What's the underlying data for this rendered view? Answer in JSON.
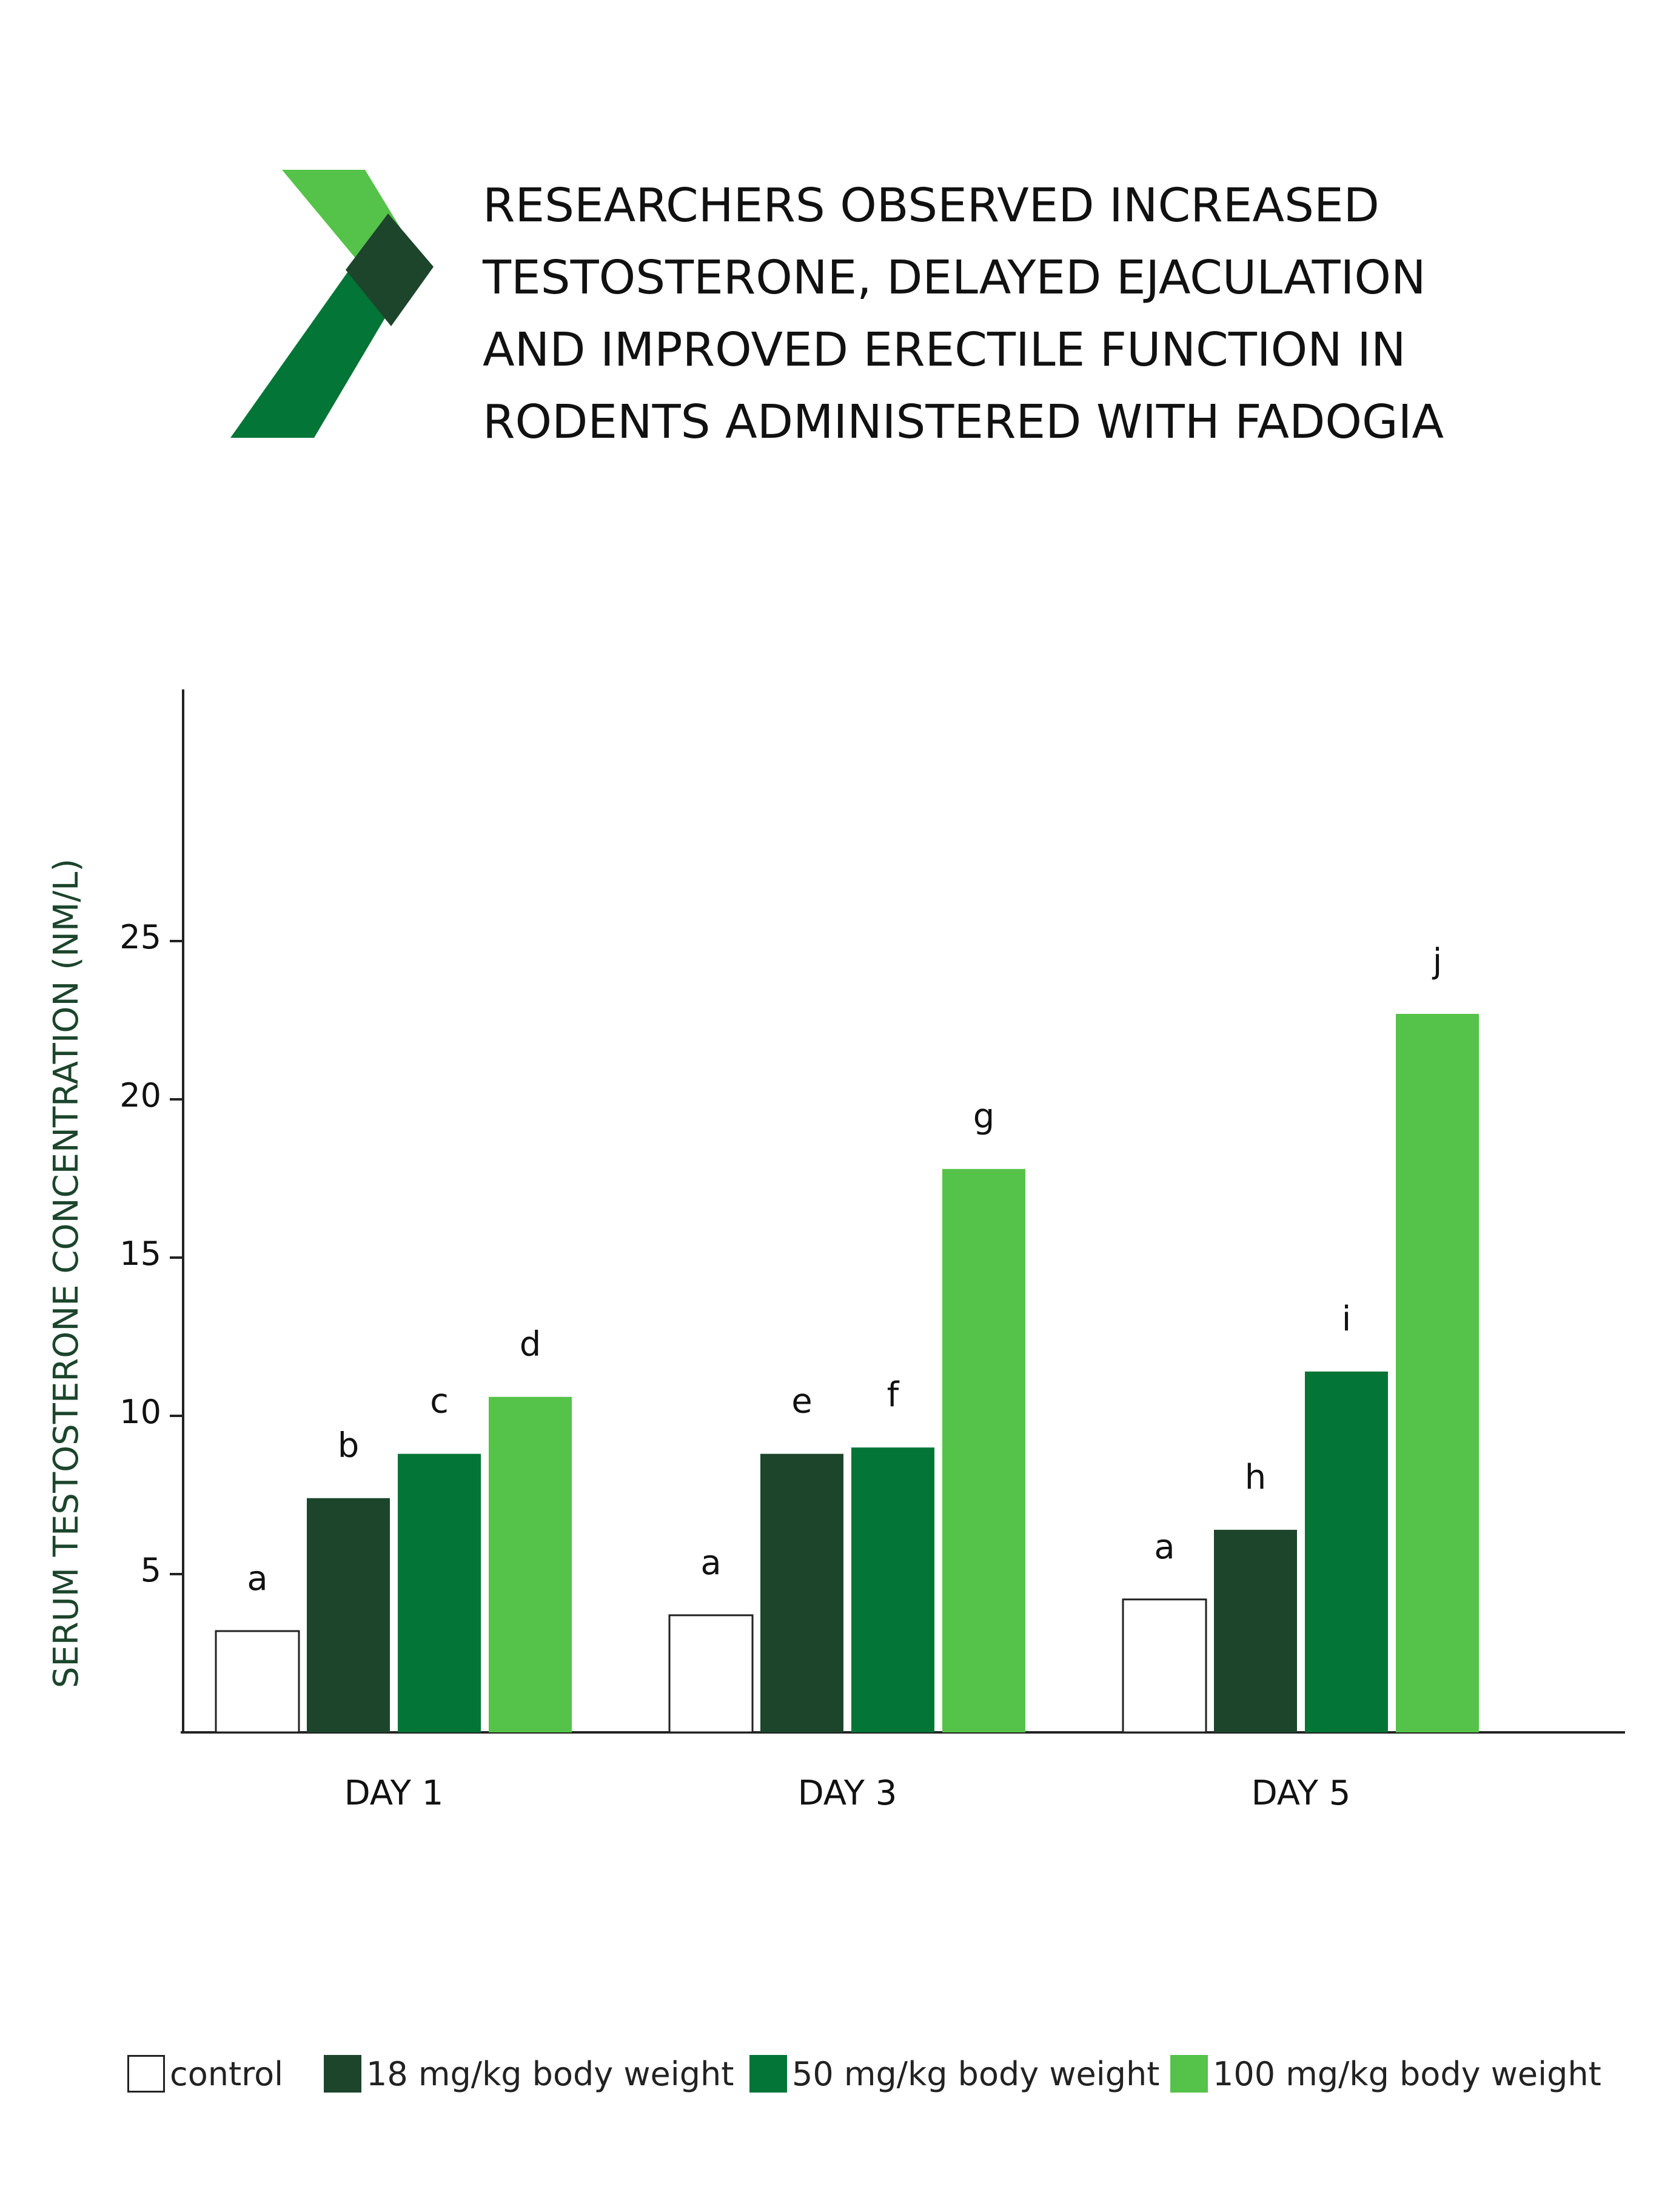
{
  "header": {
    "title_lines": [
      "RESEARCHERS OBSERVED INCREASED",
      "TESTOSTERONE, DELAYED EJACULATION",
      "AND IMPROVED ERECTILE FUNCTION IN",
      "RODENTS ADMINISTERED WITH FADOGIA"
    ]
  },
  "colors": {
    "control": "#ffffff",
    "dose18": "#1c452c",
    "dose50": "#037536",
    "dose100": "#55c349",
    "ylabel": "#1c452c",
    "logo_light": "#55c349",
    "logo_dark": "#1c452c",
    "logo_mid": "#037536"
  },
  "chart_data": {
    "type": "bar",
    "title": "",
    "xlabel": "",
    "ylabel": "SERUM TESTOSTERONE CONCENTRATION (NM/L)",
    "ylim": [
      0,
      33
    ],
    "yticks": [
      5,
      10,
      15,
      20,
      25
    ],
    "categories": [
      "DAY 1",
      "DAY 3",
      "DAY 5"
    ],
    "series": [
      {
        "name": "control",
        "color": "#ffffff",
        "values": [
          3.2,
          3.7,
          4.2
        ],
        "labels": [
          "a",
          "a",
          "a"
        ]
      },
      {
        "name": "18 mg/kg body weight",
        "color": "#1c452c",
        "values": [
          7.4,
          8.8,
          6.4
        ],
        "labels": [
          "b",
          "e",
          "h"
        ]
      },
      {
        "name": "50 mg/kg body weight",
        "color": "#037536",
        "values": [
          8.8,
          9.0,
          11.4
        ],
        "labels": [
          "c",
          "f",
          "i"
        ]
      },
      {
        "name": "100 mg/kg body weight",
        "color": "#55c349",
        "values": [
          10.6,
          17.8,
          22.7
        ],
        "labels": [
          "d",
          "g",
          "j"
        ]
      }
    ],
    "legend_position": "bottom",
    "grid": false
  }
}
